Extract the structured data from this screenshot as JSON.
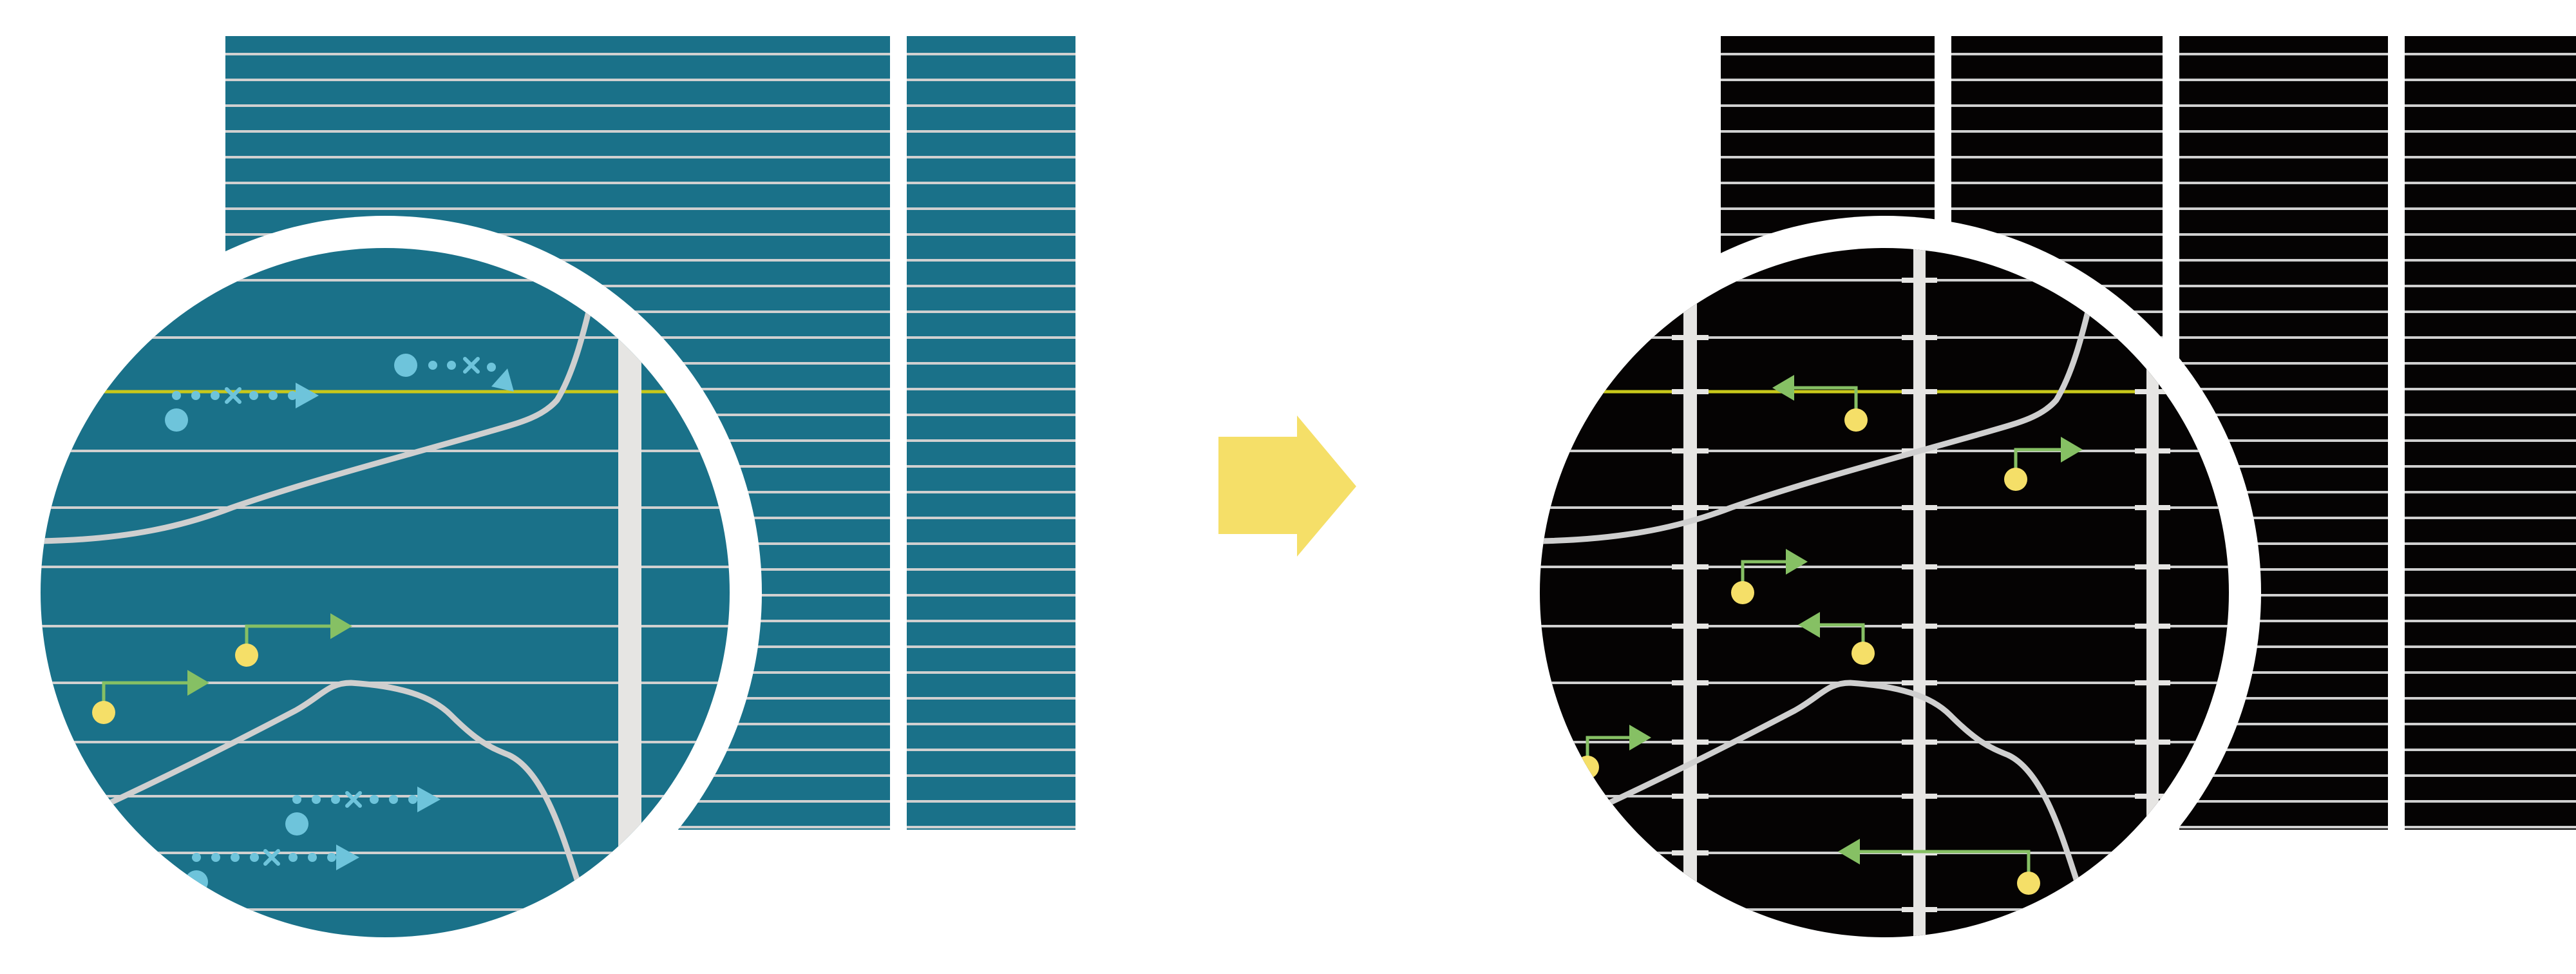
{
  "colors": {
    "before_background": "#1a7189",
    "after_background": "#050303",
    "grid_line": "#d0d0d0",
    "vertical_bar": "#e6e5e3",
    "highlight_line": "#c8c81a",
    "transition_arrow": "#f5df68",
    "source_dot": "#f5df68",
    "green_arrow": "#86c064",
    "blue_marker": "#6ec4db",
    "curve": "#cfcfcf"
  },
  "icons": {
    "transition": "right-arrow-icon",
    "origin": "dot-icon",
    "direction": "triangle-arrow-icon",
    "crossing": "x-mark-icon"
  }
}
